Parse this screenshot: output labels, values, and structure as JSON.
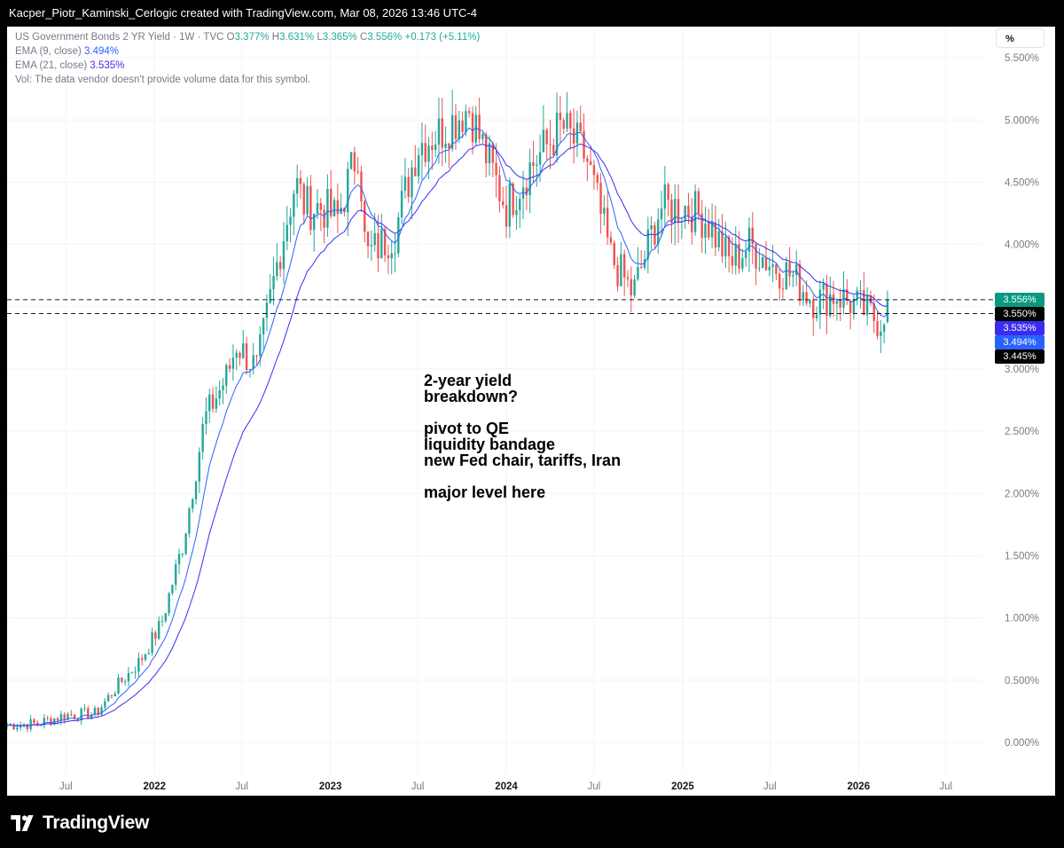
{
  "header": {
    "watermark": "Kacper_Piotr_Kaminski_Cerlogic created with TradingView.com, Mar 08, 2026 13:46 UTC-4"
  },
  "legend": {
    "symbol": "US Government Bonds 2 YR Yield · 1W · TVC",
    "o_label": "O",
    "o_value": "3.377%",
    "h_label": "H",
    "h_value": "3.631%",
    "l_label": "L",
    "l_value": "3.365%",
    "c_label": "C",
    "c_value": "3.556%",
    "change": "+0.173 (+5.11%)",
    "ema9_label": "EMA (9, close)",
    "ema9_value": "3.494%",
    "ema21_label": "EMA (21, close)",
    "ema21_value": "3.535%",
    "vol_note": "Vol: The data vendor doesn't provide volume data for this symbol."
  },
  "scale_button": "%",
  "annotation": {
    "lines": [
      "2-year yield",
      "breakdown?",
      "",
      "pivot to QE",
      "liquidity bandage",
      "new Fed chair, tariffs, Iran",
      "",
      "major level here"
    ]
  },
  "price_tags": [
    {
      "label": "3.556%",
      "value": 3.556,
      "color": "#089981"
    },
    {
      "label": "3.550%",
      "value": 3.55,
      "color": "#000000"
    },
    {
      "label": "3.535%",
      "value": 3.535,
      "color": "#3c2cf0"
    },
    {
      "label": "3.494%",
      "value": 3.494,
      "color": "#2962ff"
    },
    {
      "label": "3.445%",
      "value": 3.445,
      "color": "#000000"
    }
  ],
  "footer": {
    "brand": "TradingView"
  },
  "colors": {
    "up": "#26a69a",
    "down": "#ef5350",
    "ema9": "#2962ff",
    "ema21": "#3c2cf0",
    "grid": "#f0f3fa",
    "axis_text": "#787b86"
  },
  "chart_data": {
    "type": "line",
    "title": "US Government Bonds 2 YR Yield · 1W · TVC",
    "chart_style": "candlestick",
    "y_scale": "percent",
    "ylim": [
      -0.25,
      5.75
    ],
    "y_ticks": [
      "5.500%",
      "5.000%",
      "4.500%",
      "4.000%",
      "3.500%",
      "3.000%",
      "2.500%",
      "2.000%",
      "1.500%",
      "1.000%",
      "0.500%",
      "0.000%"
    ],
    "y_tick_values": [
      5.5,
      5.0,
      4.5,
      4.0,
      3.5,
      3.0,
      2.5,
      2.0,
      1.5,
      1.0,
      0.5,
      0.0
    ],
    "xlim": [
      "2021-03-01",
      "2026-09-15"
    ],
    "x_ticks": [
      {
        "label": "Jul",
        "date": "2021-07-01",
        "bold": false
      },
      {
        "label": "2022",
        "date": "2022-01-01",
        "bold": true
      },
      {
        "label": "Jul",
        "date": "2022-07-01",
        "bold": false
      },
      {
        "label": "2023",
        "date": "2023-01-01",
        "bold": true
      },
      {
        "label": "Jul",
        "date": "2023-07-01",
        "bold": false
      },
      {
        "label": "2024",
        "date": "2024-01-01",
        "bold": true
      },
      {
        "label": "Jul",
        "date": "2024-07-01",
        "bold": false
      },
      {
        "label": "2025",
        "date": "2025-01-01",
        "bold": true
      },
      {
        "label": "Jul",
        "date": "2025-07-01",
        "bold": false
      },
      {
        "label": "2026",
        "date": "2026-01-01",
        "bold": true
      },
      {
        "label": "Jul",
        "date": "2026-07-01",
        "bold": false
      }
    ],
    "horizontal_levels": [
      3.556,
      3.445
    ],
    "last_bar": {
      "open": 3.377,
      "high": 3.631,
      "low": 3.365,
      "close": 3.556,
      "change": 0.173,
      "change_pct": 5.11
    },
    "close_series": {
      "dates": [
        "2021-03-01",
        "2021-05-01",
        "2021-07-01",
        "2021-09-01",
        "2021-10-15",
        "2021-12-01",
        "2022-01-15",
        "2022-03-01",
        "2022-04-15",
        "2022-06-01",
        "2022-06-20",
        "2022-08-01",
        "2022-09-15",
        "2022-10-20",
        "2022-11-10",
        "2022-12-15",
        "2023-01-15",
        "2023-03-01",
        "2023-03-15",
        "2023-04-15",
        "2023-05-15",
        "2023-07-01",
        "2023-08-15",
        "2023-10-15",
        "2023-12-01",
        "2024-01-01",
        "2024-02-15",
        "2024-04-25",
        "2024-06-15",
        "2024-08-05",
        "2024-09-20",
        "2024-11-15",
        "2025-01-10",
        "2025-02-20",
        "2025-04-10",
        "2025-05-20",
        "2025-07-01",
        "2025-08-15",
        "2025-10-01",
        "2025-11-15",
        "2026-01-01",
        "2026-02-15",
        "2026-03-02"
      ],
      "values": [
        0.14,
        0.15,
        0.22,
        0.23,
        0.45,
        0.65,
        0.95,
        1.6,
        2.6,
        2.95,
        3.2,
        3.0,
        3.9,
        4.5,
        4.3,
        4.3,
        4.2,
        4.8,
        3.9,
        4.0,
        4.1,
        4.8,
        4.9,
        5.1,
        4.6,
        4.3,
        4.6,
        4.95,
        4.7,
        3.9,
        3.6,
        4.3,
        4.3,
        4.2,
        3.85,
        4.0,
        3.85,
        3.75,
        3.55,
        3.6,
        3.5,
        3.377,
        3.556
      ]
    },
    "series": [
      {
        "name": "EMA (9, close)",
        "last_value": 3.494
      },
      {
        "name": "EMA (21, close)",
        "last_value": 3.535
      }
    ]
  }
}
